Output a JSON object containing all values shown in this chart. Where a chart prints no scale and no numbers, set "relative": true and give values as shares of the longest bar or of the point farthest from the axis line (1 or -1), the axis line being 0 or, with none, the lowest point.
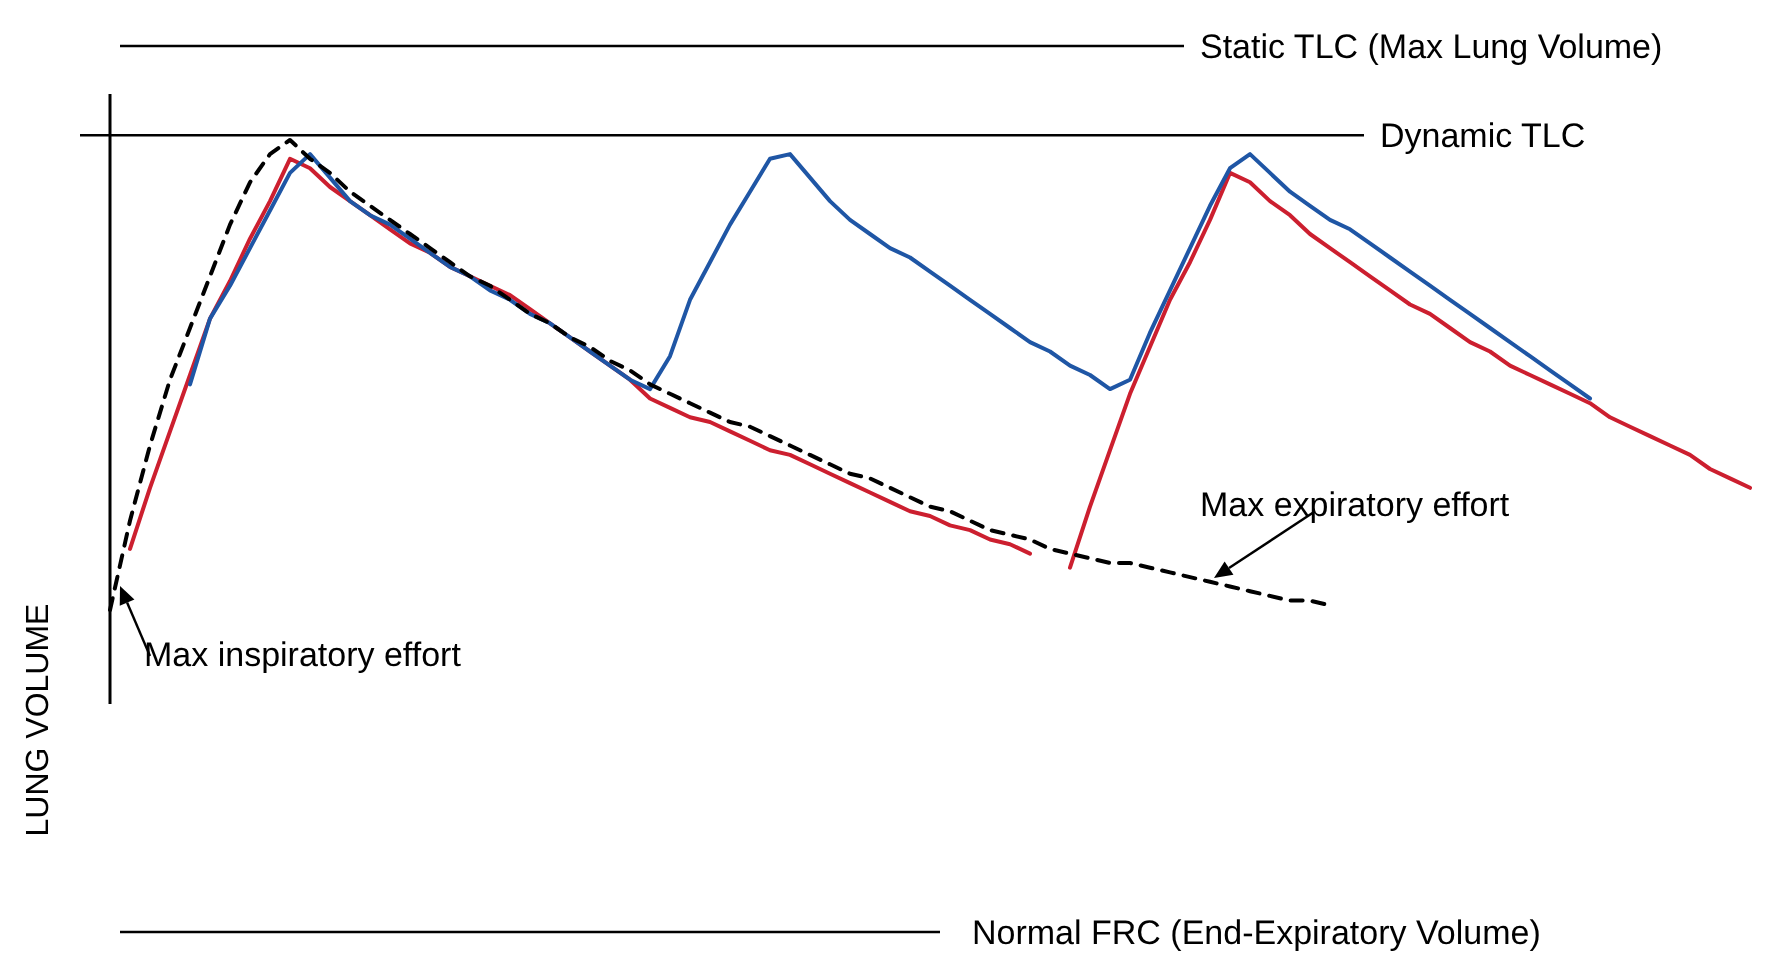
{
  "chart_data": {
    "type": "line",
    "relative": true,
    "ylabel": "LUNG VOLUME",
    "categories": [
      null,
      null,
      null,
      null,
      null,
      null,
      null,
      null,
      null,
      null,
      null,
      null,
      null,
      null,
      null,
      null,
      null,
      null,
      null,
      null,
      null,
      null,
      null,
      null,
      null,
      null,
      null,
      null,
      null,
      null,
      null,
      null,
      null,
      null,
      null,
      null,
      null,
      null,
      null,
      null,
      null,
      null,
      null,
      null,
      null,
      null,
      null,
      null,
      null,
      null,
      null,
      null,
      null,
      null,
      null,
      null,
      null,
      null,
      null,
      null,
      null,
      null,
      null,
      null,
      null,
      null,
      null,
      null,
      null,
      null,
      null,
      null,
      null,
      null,
      null,
      null,
      null,
      null,
      null,
      null,
      null,
      null,
      null,
      null
    ],
    "series": [
      {
        "color": "#cc1f2f",
        "line_style": "solid",
        "values": [
          null,
          0.13,
          0.26,
          0.38,
          0.5,
          0.62,
          0.7,
          0.79,
          0.87,
          0.96,
          0.94,
          0.9,
          0.87,
          0.84,
          0.81,
          0.78,
          0.76,
          0.73,
          0.71,
          0.69,
          0.67,
          0.64,
          0.61,
          0.58,
          0.55,
          0.52,
          0.49,
          0.45,
          0.43,
          0.41,
          0.4,
          0.38,
          0.36,
          0.34,
          0.33,
          0.31,
          0.29,
          0.27,
          0.25,
          0.23,
          0.21,
          0.2,
          0.18,
          0.17,
          0.15,
          0.14,
          0.12,
          null,
          0.09,
          0.22,
          0.34,
          0.46,
          0.56,
          0.66,
          0.74,
          0.83,
          0.93,
          0.91,
          0.87,
          0.84,
          0.8,
          0.77,
          0.74,
          0.71,
          0.68,
          0.65,
          0.63,
          0.6,
          0.57,
          0.55,
          0.52,
          0.5,
          0.48,
          0.46,
          0.44,
          0.41,
          0.39,
          0.37,
          0.35,
          0.33,
          0.3,
          0.28,
          0.26,
          null
        ]
      },
      {
        "color": "#1f56a5",
        "line_style": "solid",
        "values": [
          null,
          null,
          null,
          null,
          0.48,
          0.62,
          0.69,
          0.77,
          0.85,
          0.93,
          0.97,
          0.92,
          0.87,
          0.84,
          0.82,
          0.79,
          0.76,
          0.73,
          0.71,
          0.68,
          0.66,
          0.63,
          0.61,
          0.58,
          0.55,
          0.52,
          0.49,
          0.47,
          0.54,
          0.66,
          0.74,
          0.82,
          0.89,
          0.96,
          0.97,
          0.92,
          0.87,
          0.83,
          0.8,
          0.77,
          0.75,
          0.72,
          0.69,
          0.66,
          0.63,
          0.6,
          0.57,
          0.55,
          0.52,
          0.5,
          0.47,
          0.49,
          0.59,
          0.68,
          0.77,
          0.86,
          0.94,
          0.97,
          0.93,
          0.89,
          0.86,
          0.83,
          0.81,
          0.78,
          0.75,
          0.72,
          0.69,
          0.66,
          0.63,
          0.6,
          0.57,
          0.54,
          0.51,
          0.48,
          0.45,
          null,
          null,
          null,
          null,
          null,
          null,
          null,
          null,
          null
        ]
      },
      {
        "color": "#000000",
        "line_style": "dashed",
        "values": [
          0,
          0.19,
          0.35,
          0.49,
          0.6,
          0.71,
          0.82,
          0.91,
          0.97,
          1,
          0.96,
          0.93,
          0.89,
          0.86,
          0.83,
          0.8,
          0.77,
          0.74,
          0.71,
          0.69,
          0.66,
          0.63,
          0.61,
          0.58,
          0.56,
          0.53,
          0.51,
          0.48,
          0.46,
          0.44,
          0.42,
          0.4,
          0.39,
          0.37,
          0.35,
          0.33,
          0.31,
          0.29,
          0.28,
          0.26,
          0.24,
          0.22,
          0.21,
          0.19,
          0.17,
          0.16,
          0.15,
          0.13,
          0.12,
          0.11,
          0.1,
          0.1,
          0.09,
          0.08,
          0.07,
          0.06,
          0.05,
          0.04,
          0.03,
          0.02,
          0.02,
          0.01,
          null,
          null,
          null,
          null,
          null,
          null,
          null,
          null,
          null,
          null,
          null,
          null,
          null,
          null,
          null,
          null,
          null,
          null,
          null,
          null,
          null,
          null
        ]
      }
    ],
    "ref_lines": [
      {
        "axis": "y",
        "value": 1.2,
        "label": "Static TLC (Max Lung Volume)",
        "color": "#000000"
      },
      {
        "axis": "y",
        "value": 1.01,
        "label": "Dynamic TLC",
        "color": "#000000"
      },
      {
        "axis": "y",
        "value": -0.685,
        "label": "Normal FRC (End-Expiratory Volume)",
        "color": "#000000"
      }
    ],
    "annotations": [
      "Max inspiratory effort",
      "Max expiratory effort"
    ]
  }
}
